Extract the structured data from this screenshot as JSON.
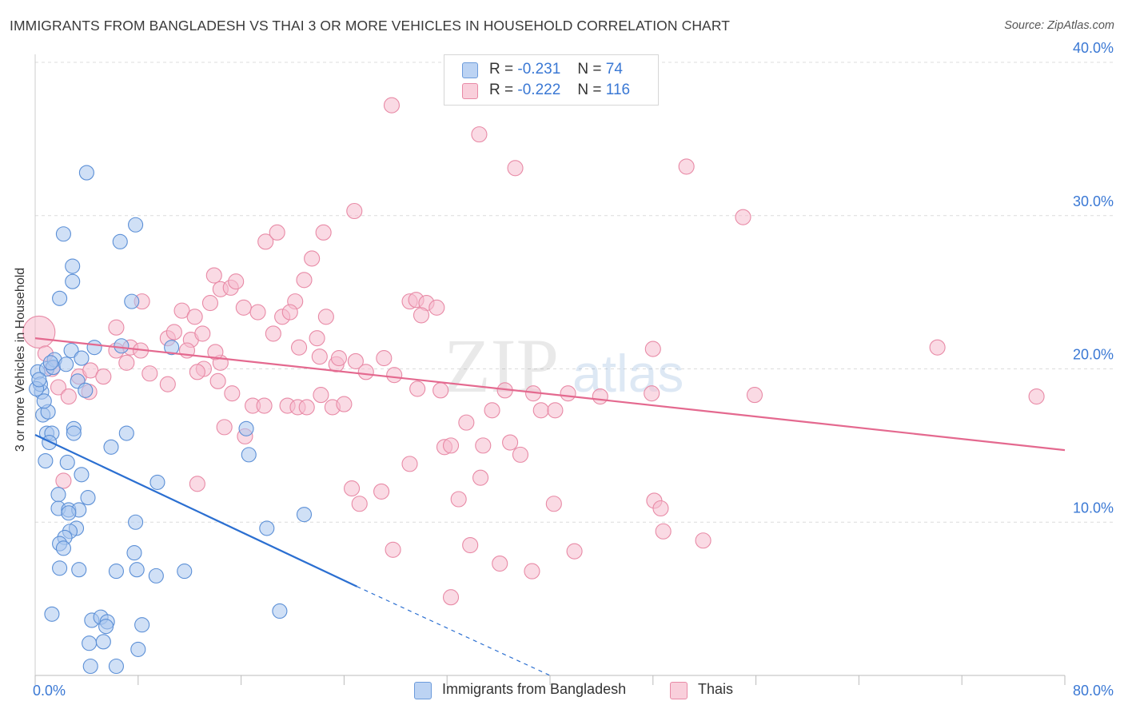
{
  "title": "IMMIGRANTS FROM BANGLADESH VS THAI 3 OR MORE VEHICLES IN HOUSEHOLD CORRELATION CHART",
  "source": "Source: ZipAtlas.com",
  "watermark": {
    "zip": "ZIP",
    "atlas": "atlas"
  },
  "legend": {
    "rows": [
      {
        "r_label": "R =",
        "r_value": "-0.231",
        "n_label": "N =",
        "n_value": "74"
      },
      {
        "r_label": "R =",
        "r_value": "-0.222",
        "n_label": "N =",
        "n_value": "116"
      }
    ]
  },
  "colors": {
    "blue_fill": "#a9c6ef",
    "blue_stroke": "#5b8fd6",
    "blue_line": "#2b6fd1",
    "pink_fill": "#f6bccd",
    "pink_stroke": "#e88aa6",
    "pink_line": "#e4698f",
    "grid": "#dcdcdc",
    "tick_label": "#3a78d4"
  },
  "chart_data": {
    "type": "scatter",
    "title": "IMMIGRANTS FROM BANGLADESH VS THAI 3 OR MORE VEHICLES IN HOUSEHOLD CORRELATION CHART",
    "xlabel": "",
    "ylabel": "3 or more Vehicles in Household",
    "xlim": [
      0,
      80
    ],
    "ylim": [
      0,
      40
    ],
    "x_tick_labels": [
      "0.0%",
      "80.0%"
    ],
    "y_ticks": [
      10,
      20,
      30,
      40
    ],
    "y_tick_labels": [
      "10.0%",
      "20.0%",
      "30.0%",
      "40.0%"
    ],
    "grid": true,
    "legend_position": "top-center",
    "series": [
      {
        "name": "Immigrants from Bangladesh",
        "color": "#a9c6ef",
        "points": [
          [
            4.0,
            32.8
          ],
          [
            2.2,
            28.8
          ],
          [
            7.8,
            29.4
          ],
          [
            6.6,
            28.3
          ],
          [
            2.9,
            26.7
          ],
          [
            2.9,
            25.7
          ],
          [
            1.9,
            24.6
          ],
          [
            7.5,
            24.4
          ],
          [
            0.2,
            19.8
          ],
          [
            0.5,
            18.5
          ],
          [
            0.9,
            20.0
          ],
          [
            1.5,
            20.6
          ],
          [
            1.4,
            20.1
          ],
          [
            2.8,
            21.2
          ],
          [
            3.6,
            20.7
          ],
          [
            4.6,
            21.4
          ],
          [
            6.7,
            21.5
          ],
          [
            10.6,
            21.4
          ],
          [
            3.3,
            19.2
          ],
          [
            0.4,
            19.0
          ],
          [
            0.1,
            18.7
          ],
          [
            0.6,
            17.0
          ],
          [
            1.0,
            17.2
          ],
          [
            0.9,
            15.8
          ],
          [
            1.3,
            15.8
          ],
          [
            1.1,
            15.2
          ],
          [
            3.0,
            16.1
          ],
          [
            3.0,
            15.8
          ],
          [
            7.1,
            15.8
          ],
          [
            5.9,
            14.9
          ],
          [
            16.4,
            16.1
          ],
          [
            16.6,
            14.4
          ],
          [
            0.8,
            14.0
          ],
          [
            2.5,
            13.9
          ],
          [
            3.6,
            13.1
          ],
          [
            9.5,
            12.6
          ],
          [
            1.8,
            11.8
          ],
          [
            4.1,
            11.6
          ],
          [
            1.8,
            10.9
          ],
          [
            2.6,
            10.8
          ],
          [
            3.4,
            10.8
          ],
          [
            2.6,
            10.6
          ],
          [
            20.9,
            10.5
          ],
          [
            7.8,
            10.0
          ],
          [
            18.0,
            9.6
          ],
          [
            3.2,
            9.6
          ],
          [
            2.7,
            9.4
          ],
          [
            2.3,
            9.0
          ],
          [
            1.9,
            8.6
          ],
          [
            2.2,
            8.3
          ],
          [
            7.7,
            8.0
          ],
          [
            1.9,
            7.0
          ],
          [
            3.4,
            6.9
          ],
          [
            6.3,
            6.8
          ],
          [
            7.9,
            6.9
          ],
          [
            9.4,
            6.5
          ],
          [
            11.6,
            6.8
          ],
          [
            1.3,
            4.0
          ],
          [
            4.4,
            3.6
          ],
          [
            5.1,
            3.8
          ],
          [
            5.6,
            3.5
          ],
          [
            5.5,
            3.2
          ],
          [
            8.3,
            3.3
          ],
          [
            4.2,
            2.1
          ],
          [
            5.3,
            2.2
          ],
          [
            8.0,
            1.7
          ],
          [
            4.3,
            0.6
          ],
          [
            6.3,
            0.6
          ],
          [
            19.0,
            4.2
          ],
          [
            0.3,
            19.3
          ],
          [
            0.7,
            17.9
          ],
          [
            1.2,
            20.4
          ],
          [
            3.9,
            18.6
          ],
          [
            2.4,
            20.3
          ]
        ]
      },
      {
        "name": "Thais",
        "color": "#f6bccd",
        "points": [
          [
            0.3,
            22.4
          ],
          [
            0.8,
            21.0
          ],
          [
            1.3,
            20.0
          ],
          [
            1.8,
            18.8
          ],
          [
            2.6,
            18.2
          ],
          [
            3.4,
            19.5
          ],
          [
            4.3,
            19.9
          ],
          [
            5.3,
            19.5
          ],
          [
            6.3,
            22.7
          ],
          [
            6.3,
            21.2
          ],
          [
            7.1,
            20.4
          ],
          [
            7.4,
            21.4
          ],
          [
            8.2,
            21.2
          ],
          [
            8.9,
            19.7
          ],
          [
            8.3,
            24.4
          ],
          [
            10.3,
            22.0
          ],
          [
            11.4,
            23.8
          ],
          [
            10.8,
            22.4
          ],
          [
            12.1,
            21.9
          ],
          [
            11.8,
            21.2
          ],
          [
            12.4,
            23.4
          ],
          [
            13.0,
            22.3
          ],
          [
            13.1,
            20.0
          ],
          [
            13.6,
            24.3
          ],
          [
            13.9,
            26.1
          ],
          [
            14.4,
            25.2
          ],
          [
            15.2,
            25.3
          ],
          [
            15.6,
            25.7
          ],
          [
            16.2,
            24.0
          ],
          [
            15.3,
            18.4
          ],
          [
            14.4,
            20.4
          ],
          [
            12.6,
            19.8
          ],
          [
            10.3,
            19.0
          ],
          [
            17.3,
            23.7
          ],
          [
            17.9,
            28.3
          ],
          [
            18.8,
            28.9
          ],
          [
            19.2,
            23.4
          ],
          [
            18.5,
            22.3
          ],
          [
            20.2,
            24.4
          ],
          [
            19.8,
            23.7
          ],
          [
            20.9,
            25.8
          ],
          [
            21.5,
            27.2
          ],
          [
            22.4,
            28.9
          ],
          [
            22.6,
            23.4
          ],
          [
            21.9,
            22.0
          ],
          [
            20.5,
            21.4
          ],
          [
            22.1,
            20.8
          ],
          [
            23.4,
            20.3
          ],
          [
            23.6,
            20.7
          ],
          [
            24.9,
            20.5
          ],
          [
            25.7,
            19.8
          ],
          [
            27.1,
            20.7
          ],
          [
            27.9,
            19.6
          ],
          [
            29.1,
            24.4
          ],
          [
            29.6,
            24.5
          ],
          [
            30.4,
            24.3
          ],
          [
            30.0,
            23.5
          ],
          [
            31.2,
            24.0
          ],
          [
            29.7,
            18.7
          ],
          [
            31.5,
            18.6
          ],
          [
            36.5,
            18.6
          ],
          [
            38.7,
            18.4
          ],
          [
            41.4,
            18.4
          ],
          [
            43.9,
            18.2
          ],
          [
            47.9,
            18.4
          ],
          [
            48.0,
            21.3
          ],
          [
            55.9,
            18.3
          ],
          [
            70.1,
            21.4
          ],
          [
            77.8,
            18.2
          ],
          [
            27.7,
            37.2
          ],
          [
            34.5,
            35.3
          ],
          [
            37.3,
            33.1
          ],
          [
            50.6,
            33.2
          ],
          [
            55.0,
            29.9
          ],
          [
            24.8,
            30.3
          ],
          [
            16.9,
            17.6
          ],
          [
            17.8,
            17.6
          ],
          [
            19.6,
            17.6
          ],
          [
            22.2,
            18.3
          ],
          [
            20.4,
            17.5
          ],
          [
            21.1,
            17.5
          ],
          [
            23.1,
            17.5
          ],
          [
            24.0,
            17.7
          ],
          [
            33.5,
            16.5
          ],
          [
            35.5,
            17.3
          ],
          [
            39.3,
            17.3
          ],
          [
            40.4,
            17.3
          ],
          [
            14.7,
            16.2
          ],
          [
            16.3,
            15.6
          ],
          [
            31.8,
            14.9
          ],
          [
            32.3,
            15.0
          ],
          [
            34.8,
            15.0
          ],
          [
            36.9,
            15.2
          ],
          [
            37.7,
            14.4
          ],
          [
            29.1,
            13.8
          ],
          [
            34.6,
            12.9
          ],
          [
            32.9,
            11.5
          ],
          [
            40.3,
            11.2
          ],
          [
            48.1,
            11.4
          ],
          [
            48.6,
            10.9
          ],
          [
            12.6,
            12.5
          ],
          [
            24.6,
            12.2
          ],
          [
            25.2,
            11.2
          ],
          [
            14.2,
            19.2
          ],
          [
            14.0,
            21.1
          ],
          [
            26.9,
            12.0
          ],
          [
            48.8,
            9.4
          ],
          [
            51.9,
            8.8
          ],
          [
            33.8,
            8.5
          ],
          [
            27.8,
            8.2
          ],
          [
            41.9,
            8.1
          ],
          [
            36.1,
            7.3
          ],
          [
            38.6,
            6.8
          ],
          [
            32.3,
            5.1
          ],
          [
            2.2,
            12.7
          ],
          [
            4.2,
            18.5
          ]
        ]
      }
    ],
    "trendlines": [
      {
        "series": "Immigrants from Bangladesh",
        "x0": 0,
        "y0": 15.7,
        "x1": 25,
        "y1": 5.8,
        "dashed_to_x": 40,
        "dashed_to_y": 0
      },
      {
        "series": "Thais",
        "x0": 0,
        "y0": 22.0,
        "x1": 80,
        "y1": 14.7
      }
    ]
  }
}
